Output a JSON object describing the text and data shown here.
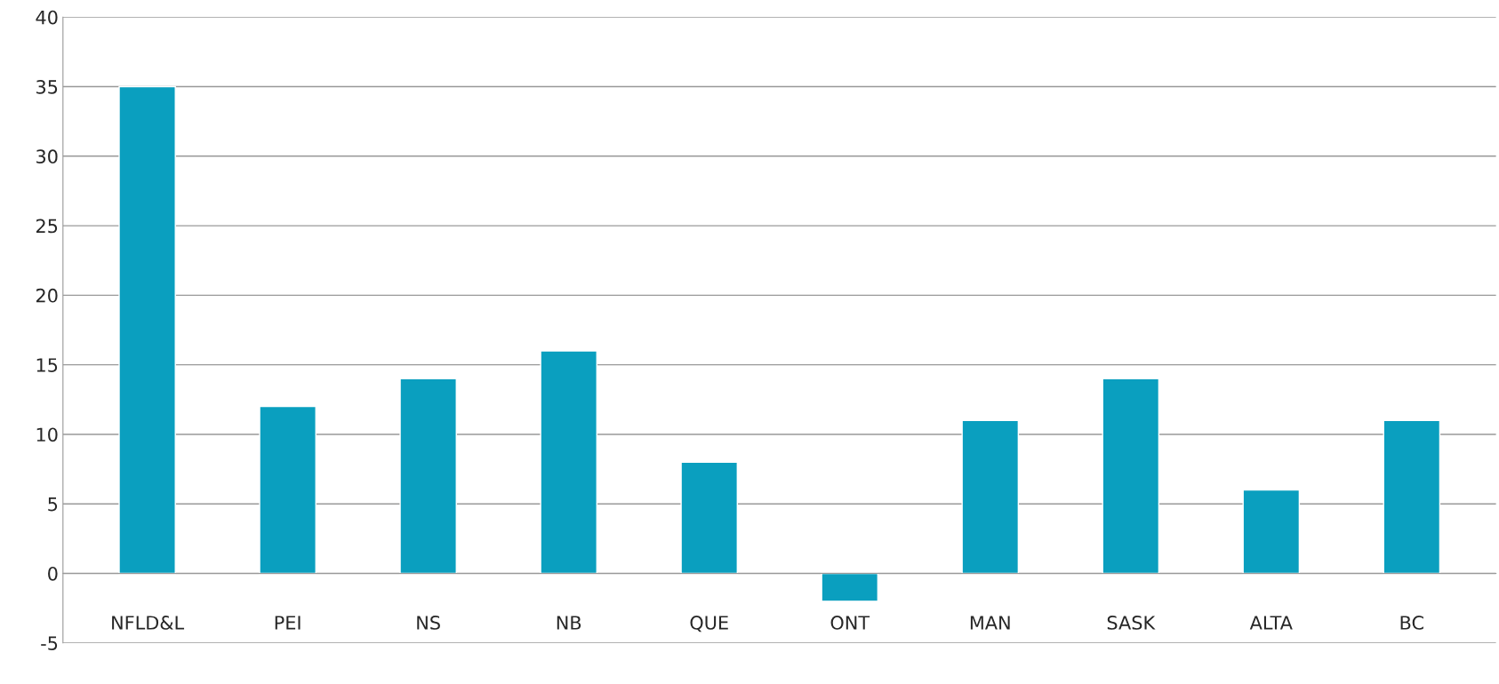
{
  "chart_data": {
    "type": "bar",
    "categories": [
      "NFLD&L",
      "PEI",
      "NS",
      "NB",
      "QUE",
      "ONT",
      "MAN",
      "SASK",
      "ALTA",
      "BC"
    ],
    "values": [
      35,
      12,
      14,
      16,
      8,
      -2,
      11,
      14,
      6,
      11
    ],
    "color": "#0a9fbf",
    "ylim": [
      -5,
      40
    ],
    "yticks": [
      -5,
      0,
      5,
      10,
      15,
      20,
      25,
      30,
      35,
      40
    ],
    "grid": "y",
    "legend": false
  }
}
